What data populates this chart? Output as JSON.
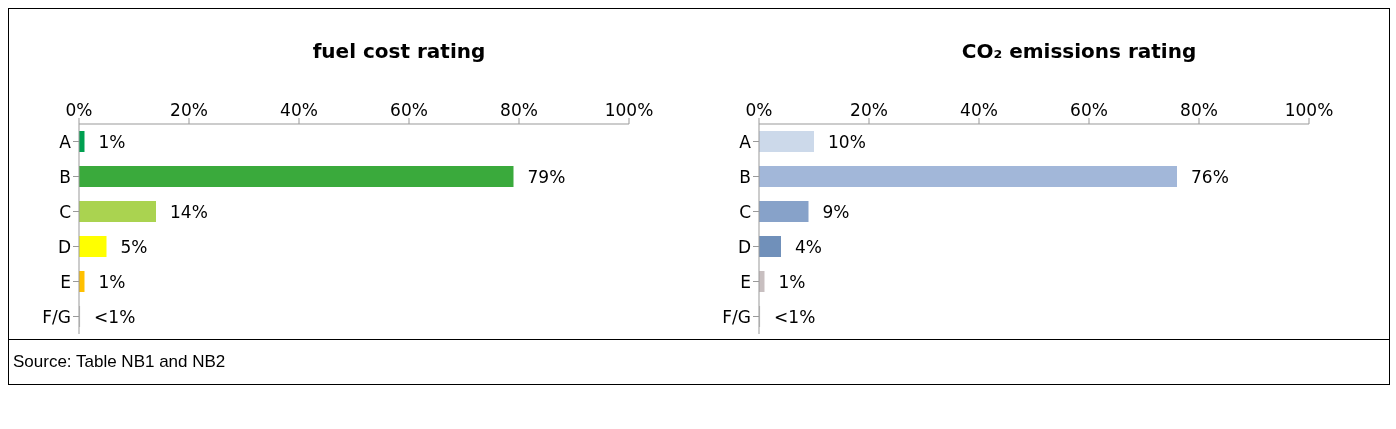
{
  "chart_data": [
    {
      "type": "bar",
      "orientation": "horizontal",
      "title": "fuel cost rating",
      "categories": [
        "A",
        "B",
        "C",
        "D",
        "E",
        "F/G"
      ],
      "values": [
        1,
        79,
        14,
        5,
        1,
        0.2
      ],
      "colors": [
        "#00a050",
        "#3aaa3c",
        "#aad350",
        "#ffff00",
        "#ffc000",
        "#c0c0c0"
      ],
      "value_labels": [
        "1%",
        "79%",
        "14%",
        "5%",
        "1%",
        "<1%"
      ],
      "xlim": [
        0,
        100
      ],
      "xticks": [
        {
          "value": 0,
          "label": "0%"
        },
        {
          "value": 20,
          "label": "20%"
        },
        {
          "value": 40,
          "label": "40%"
        },
        {
          "value": 60,
          "label": "60%"
        },
        {
          "value": 80,
          "label": "80%"
        },
        {
          "value": 100,
          "label": "100%"
        }
      ],
      "annotations": [
        "Source: Table NB1 and NB2"
      ]
    },
    {
      "type": "bar",
      "orientation": "horizontal",
      "title": "CO₂ emissions rating",
      "categories": [
        "A",
        "B",
        "C",
        "D",
        "E",
        "F/G"
      ],
      "values": [
        10,
        76,
        9,
        4,
        1,
        0.2
      ],
      "colors": [
        "#ccd9ea",
        "#a2b7d9",
        "#87a2c9",
        "#7090ba",
        "#c8bfc0",
        "#c0c0c0"
      ],
      "value_labels": [
        "10%",
        "76%",
        "9%",
        "4%",
        "1%",
        "<1%"
      ],
      "xlim": [
        0,
        100
      ],
      "xticks": [
        {
          "value": 0,
          "label": "0%"
        },
        {
          "value": 20,
          "label": "20%"
        },
        {
          "value": 40,
          "label": "40%"
        },
        {
          "value": 60,
          "label": "60%"
        },
        {
          "value": 80,
          "label": "80%"
        },
        {
          "value": 100,
          "label": "100%"
        }
      ]
    }
  ]
}
